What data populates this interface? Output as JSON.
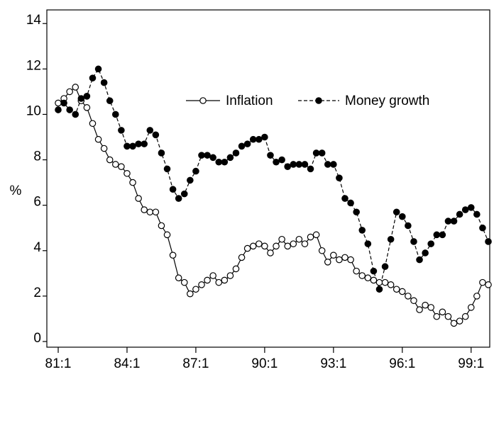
{
  "chart_data": {
    "type": "line",
    "ylabel": "%",
    "categories": [
      "81:1",
      null,
      null,
      null,
      null,
      null,
      null,
      null,
      null,
      null,
      null,
      null,
      "84:1",
      null,
      null,
      null,
      null,
      null,
      null,
      null,
      null,
      null,
      null,
      null,
      "87:1",
      null,
      null,
      null,
      null,
      null,
      null,
      null,
      null,
      null,
      null,
      null,
      "90:1",
      null,
      null,
      null,
      null,
      null,
      null,
      null,
      null,
      null,
      null,
      null,
      "93:1",
      null,
      null,
      null,
      null,
      null,
      null,
      null,
      null,
      null,
      null,
      null,
      "96:1",
      null,
      null,
      null,
      null,
      null,
      null,
      null,
      null,
      null,
      null,
      null,
      "99:1",
      null,
      null,
      null
    ],
    "series": [
      {
        "name": "Inflation",
        "color": "#000000",
        "marker": "open",
        "dashed": false,
        "values": [
          10.5,
          10.7,
          11.0,
          11.2,
          10.6,
          10.3,
          9.6,
          8.9,
          8.5,
          8.0,
          7.8,
          7.7,
          7.4,
          7.0,
          6.3,
          5.8,
          5.7,
          5.7,
          5.1,
          4.7,
          3.8,
          2.8,
          2.6,
          2.1,
          2.3,
          2.5,
          2.7,
          2.9,
          2.6,
          2.7,
          2.9,
          3.2,
          3.7,
          4.1,
          4.2,
          4.3,
          4.2,
          3.9,
          4.2,
          4.5,
          4.2,
          4.3,
          4.5,
          4.3,
          4.6,
          4.7,
          4.0,
          3.5,
          3.8,
          3.6,
          3.7,
          3.6,
          3.1,
          2.9,
          2.8,
          2.7,
          2.6,
          2.6,
          2.5,
          2.3,
          2.2,
          2.0,
          1.8,
          1.4,
          1.6,
          1.5,
          1.1,
          1.3,
          1.1,
          0.8,
          0.9,
          1.1,
          1.5,
          2.0,
          2.6,
          2.5
        ]
      },
      {
        "name": "Money growth",
        "color": "#000000",
        "marker": "filled",
        "dashed": true,
        "values": [
          10.2,
          10.5,
          10.2,
          10.0,
          10.7,
          10.8,
          11.6,
          12.0,
          11.4,
          10.6,
          10.0,
          9.3,
          8.6,
          8.6,
          8.7,
          8.7,
          9.3,
          9.1,
          8.3,
          7.6,
          6.7,
          6.3,
          6.5,
          7.1,
          7.5,
          8.2,
          8.2,
          8.1,
          7.9,
          7.9,
          8.1,
          8.3,
          8.6,
          8.7,
          8.9,
          8.9,
          9.0,
          8.2,
          7.9,
          8.0,
          7.7,
          7.8,
          7.8,
          7.8,
          7.6,
          8.3,
          8.3,
          7.8,
          7.8,
          7.2,
          6.3,
          6.1,
          5.7,
          4.9,
          4.3,
          3.1,
          2.3,
          3.3,
          4.5,
          5.7,
          5.5,
          5.1,
          4.4,
          3.6,
          3.9,
          4.3,
          4.7,
          4.7,
          5.3,
          5.3,
          5.6,
          5.8,
          5.9,
          5.6,
          5.0,
          4.4
        ]
      }
    ],
    "ylim": [
      -0.25,
      14.6
    ],
    "yticks": [
      0,
      2,
      4,
      6,
      8,
      10,
      12,
      14
    ],
    "grid": false
  }
}
